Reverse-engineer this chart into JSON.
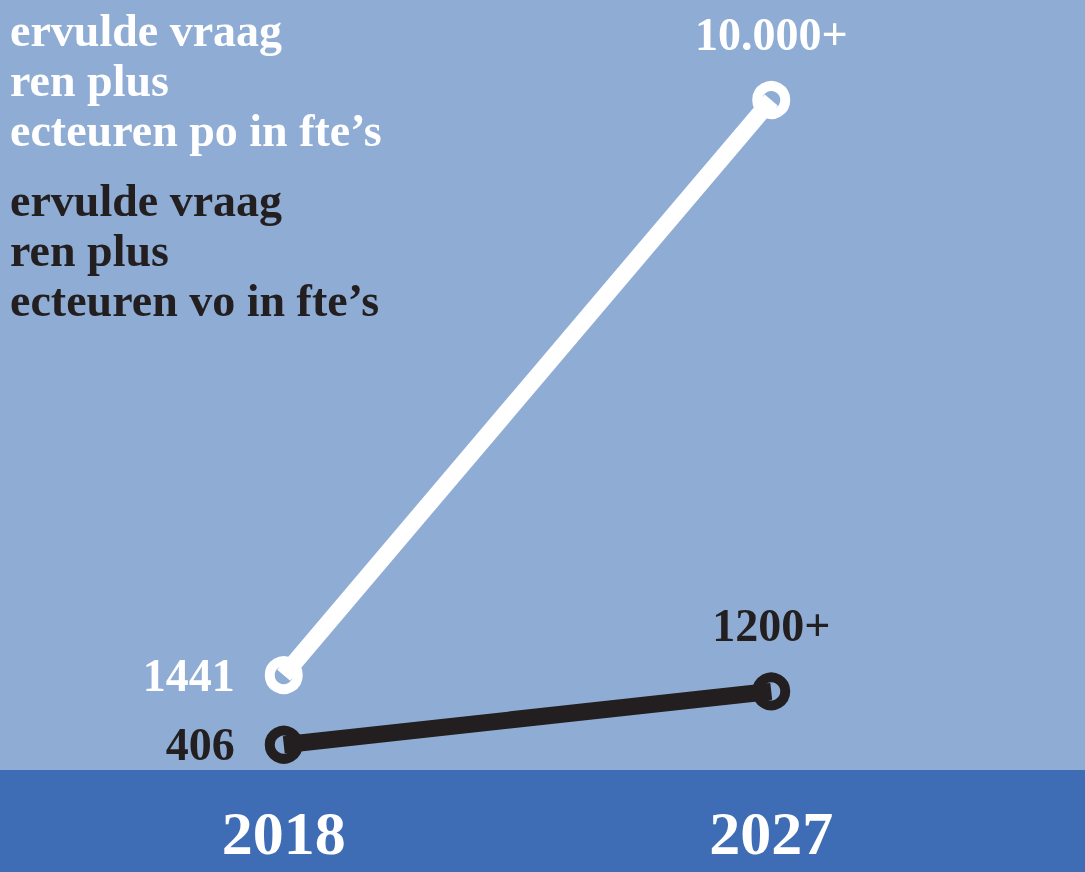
{
  "chart_data": {
    "type": "line",
    "categories": [
      "2018",
      "2027"
    ],
    "legend": "top left",
    "marker": "circle",
    "series": [
      {
        "name": "ervulde vraag\nren plus\necteuren po in fte’s",
        "color": "#ffffff",
        "values": [
          1441,
          10000
        ],
        "value_labels": [
          "1441",
          "10.000+"
        ]
      },
      {
        "name": "ervulde vraag\nren plus\necteuren vo in fte’s",
        "color": "#231f20",
        "values": [
          406,
          1200
        ],
        "value_labels": [
          "406",
          "1200+"
        ]
      }
    ]
  }
}
